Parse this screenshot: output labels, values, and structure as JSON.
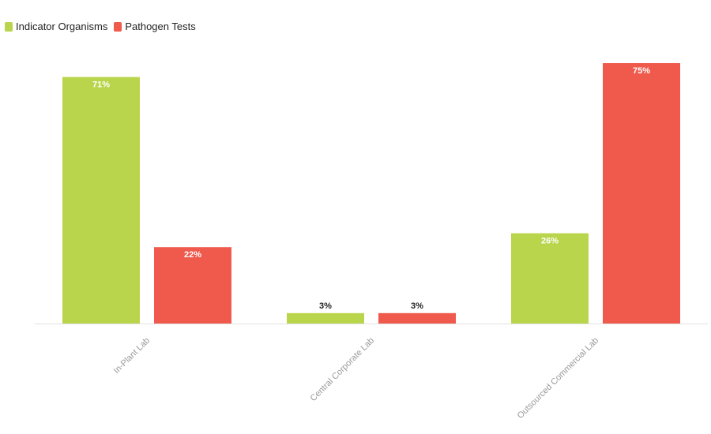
{
  "chart_data": {
    "type": "bar",
    "categories": [
      "In-Plant Lab",
      "Central Corporate Lab",
      "Outsourced Commercial Lab"
    ],
    "series": [
      {
        "name": "Indicator Organisms",
        "color": "#b9d54b",
        "values": [
          71,
          3,
          26
        ]
      },
      {
        "name": "Pathogen Tests",
        "color": "#ef5a4d",
        "values": [
          22,
          3,
          75
        ]
      }
    ],
    "value_suffix": "%",
    "title": "",
    "xlabel": "",
    "ylabel": "",
    "ylim": [
      0,
      75
    ],
    "grid": false,
    "legend": "top-left"
  }
}
